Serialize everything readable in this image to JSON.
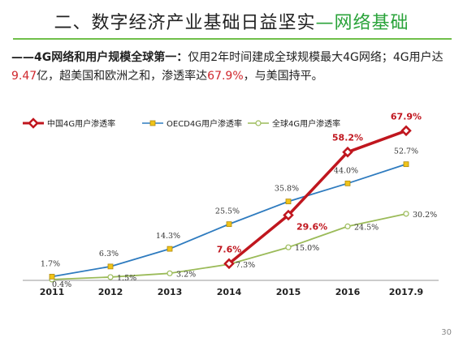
{
  "slide": {
    "title_main": "二、数字经济产业基础日益坚实",
    "title_accent": "—网络基础",
    "subtitle": {
      "bold_lead": "——4G网络和用户规模全球第一：",
      "text1": "仅用2年时间建成全球规模最大4G网络；4G用户达",
      "hl1": "9.47",
      "text2": "亿，超美国和欧洲之和，渗透率达",
      "hl2": "67.9%",
      "text3": "，与美国持平。"
    },
    "page_number": "30"
  },
  "chart_data": {
    "type": "line",
    "categories": [
      "2011",
      "2012",
      "2013",
      "2014",
      "2015",
      "2016",
      "2017.9"
    ],
    "ylim": [
      0,
      75
    ],
    "grid": false,
    "legend_position": "top",
    "title": "",
    "xlabel": "",
    "ylabel": "",
    "series": [
      {
        "name": "中国4G用户渗透率",
        "color": "#c0161e",
        "marker": "diamond",
        "values": [
          null,
          null,
          null,
          7.6,
          29.6,
          58.2,
          67.9
        ],
        "labels": [
          "",
          "",
          "",
          "7.6%",
          "29.6%",
          "58.2%",
          "67.9%"
        ]
      },
      {
        "name": "OECD4G用户渗透率",
        "color": "#2e7bbf",
        "marker": "square",
        "values": [
          1.7,
          6.3,
          14.3,
          25.5,
          35.8,
          44.0,
          52.7
        ],
        "labels": [
          "1.7%",
          "6.3%",
          "14.3%",
          "25.5%",
          "35.8%",
          "44.0%",
          "52.7%"
        ]
      },
      {
        "name": "全球4G用户渗透率",
        "color": "#9bbb59",
        "marker": "circle",
        "values": [
          0.4,
          1.5,
          3.2,
          7.3,
          15.0,
          24.5,
          30.2
        ],
        "labels": [
          "0.4%",
          "1.5%",
          "3.2%",
          "7.3%",
          "15.0%",
          "24.5%",
          "30.2%"
        ]
      }
    ]
  }
}
